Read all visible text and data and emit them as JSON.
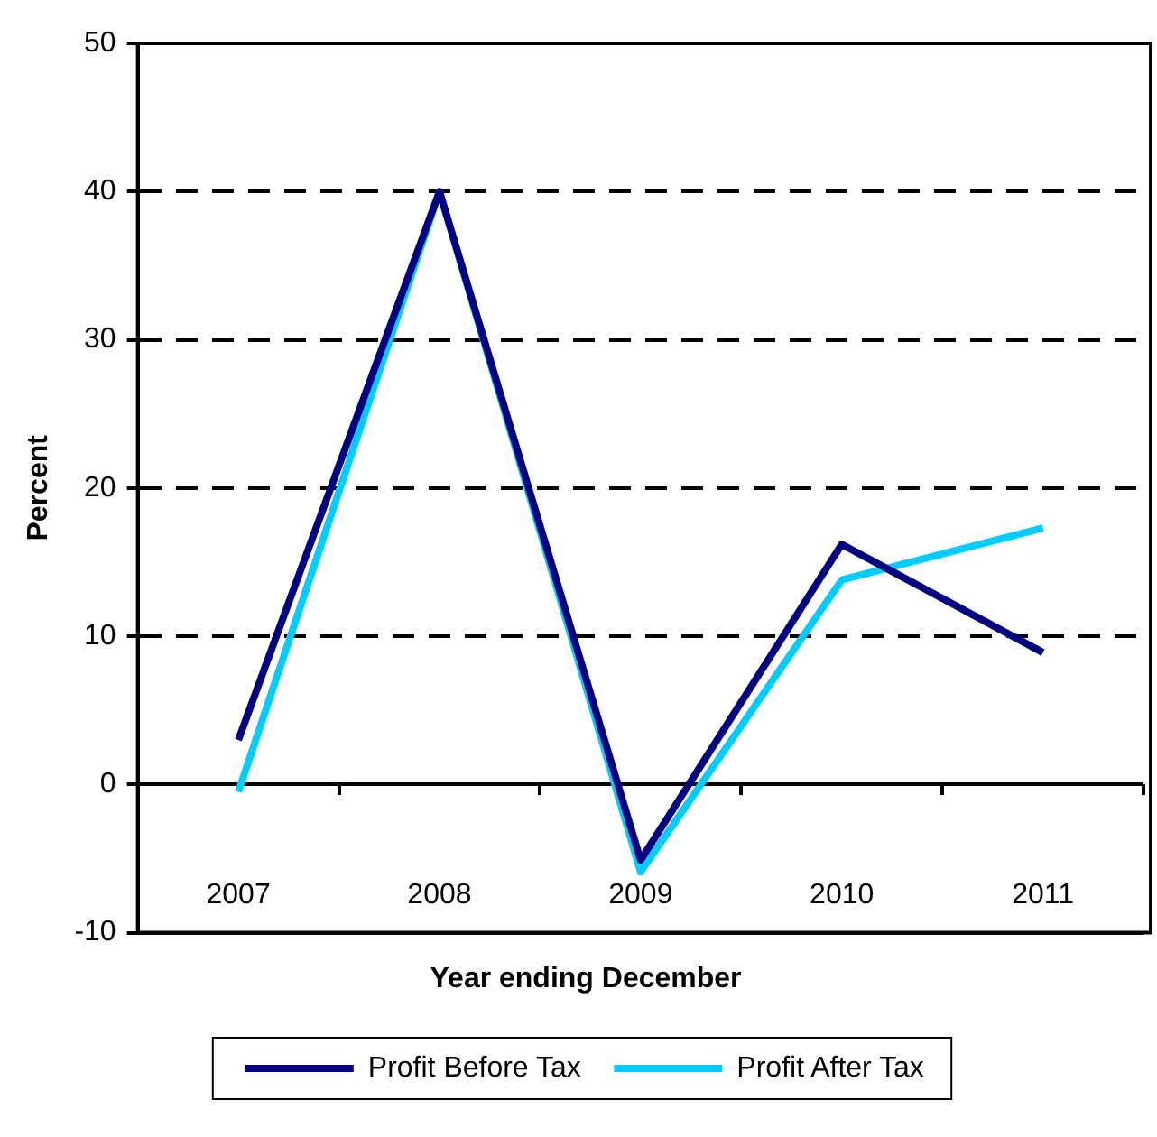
{
  "chart_data": {
    "type": "line",
    "xlabel": "Year ending December",
    "ylabel": "Percent",
    "categories": [
      "2007",
      "2008",
      "2009",
      "2010",
      "2011"
    ],
    "series": [
      {
        "name": "Profit Before Tax",
        "color": "#000080",
        "values": [
          3,
          40,
          -5.1,
          16.2,
          8.9
        ]
      },
      {
        "name": "Profit After Tax",
        "color": "#00ccff",
        "values": [
          -0.5,
          40,
          -5.9,
          13.8,
          17.3
        ]
      }
    ],
    "ylim": [
      -10,
      50
    ],
    "yticks": [
      -10,
      0,
      10,
      20,
      30,
      40,
      50
    ],
    "grid": "y",
    "legend": "bottom",
    "marker": "none",
    "line_style": "solid"
  }
}
